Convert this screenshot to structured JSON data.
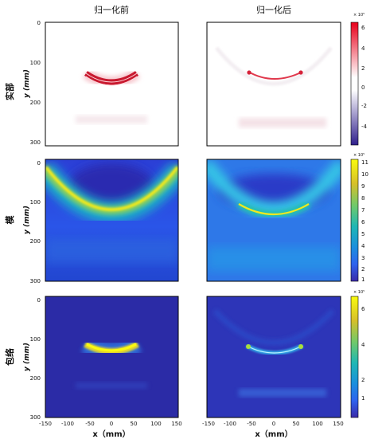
{
  "columns": [
    "归一化前",
    "归一化后"
  ],
  "rows": [
    {
      "label": "实部",
      "ylabel": "y (mm)",
      "cbar_ticks": [
        "6",
        "4",
        "2",
        "0",
        "-2",
        "-4"
      ],
      "cbar_exp": "× 10⁵"
    },
    {
      "label": "模",
      "ylabel": "y (mm)",
      "cbar_ticks": [
        "11",
        "10",
        "9",
        "8",
        "7",
        "6",
        "5",
        "4",
        "3",
        "2",
        "1"
      ],
      "cbar_exp": "× 10⁵"
    },
    {
      "label": "包络",
      "ylabel": "y (mm)",
      "cbar_ticks": [
        "6",
        "4",
        "2",
        "1"
      ],
      "cbar_exp": "× 10⁵"
    }
  ],
  "xlabel": "x（mm）",
  "y_ticks": [
    "0",
    "100",
    "200",
    "300"
  ],
  "x_ticks": [
    "-150",
    "-100",
    "-50",
    "0",
    "50",
    "100",
    "150"
  ],
  "chart_data": {
    "type": "heatmap",
    "xlim": [
      -150,
      150
    ],
    "ylim": [
      0,
      300
    ],
    "x_ticks": [
      -150,
      -100,
      -50,
      0,
      50,
      100,
      150
    ],
    "y_ticks": [
      0,
      100,
      200,
      300
    ],
    "panels": [
      {
        "row": "实部",
        "column": "归一化前",
        "colormap": "red-white-blue",
        "arc_center_y": 135
      },
      {
        "row": "实部",
        "column": "归一化后",
        "colormap": "red-white-blue",
        "arc_center_y": 127
      },
      {
        "row": "模",
        "column": "归一化前",
        "colormap": "parula",
        "arc_center_y": 130
      },
      {
        "row": "模",
        "column": "归一化后",
        "colormap": "parula",
        "arc_center_y": 130
      },
      {
        "row": "包络",
        "column": "归一化前",
        "colormap": "parula",
        "arc_center_y": 135
      },
      {
        "row": "包络",
        "column": "归一化后",
        "colormap": "parula",
        "arc_center_y": 125
      }
    ],
    "colorbars": [
      {
        "row": "实部",
        "range": [
          -5,
          6.5
        ],
        "ticks": [
          6,
          4,
          2,
          0,
          -2,
          -4
        ]
      },
      {
        "row": "模",
        "range": [
          0.6,
          11.2
        ],
        "ticks": [
          11,
          10,
          9,
          8,
          7,
          6,
          5,
          4,
          3,
          2,
          1
        ]
      },
      {
        "row": "包络",
        "range": [
          0,
          6.8
        ],
        "ticks": [
          6,
          4,
          2,
          1
        ]
      }
    ]
  }
}
